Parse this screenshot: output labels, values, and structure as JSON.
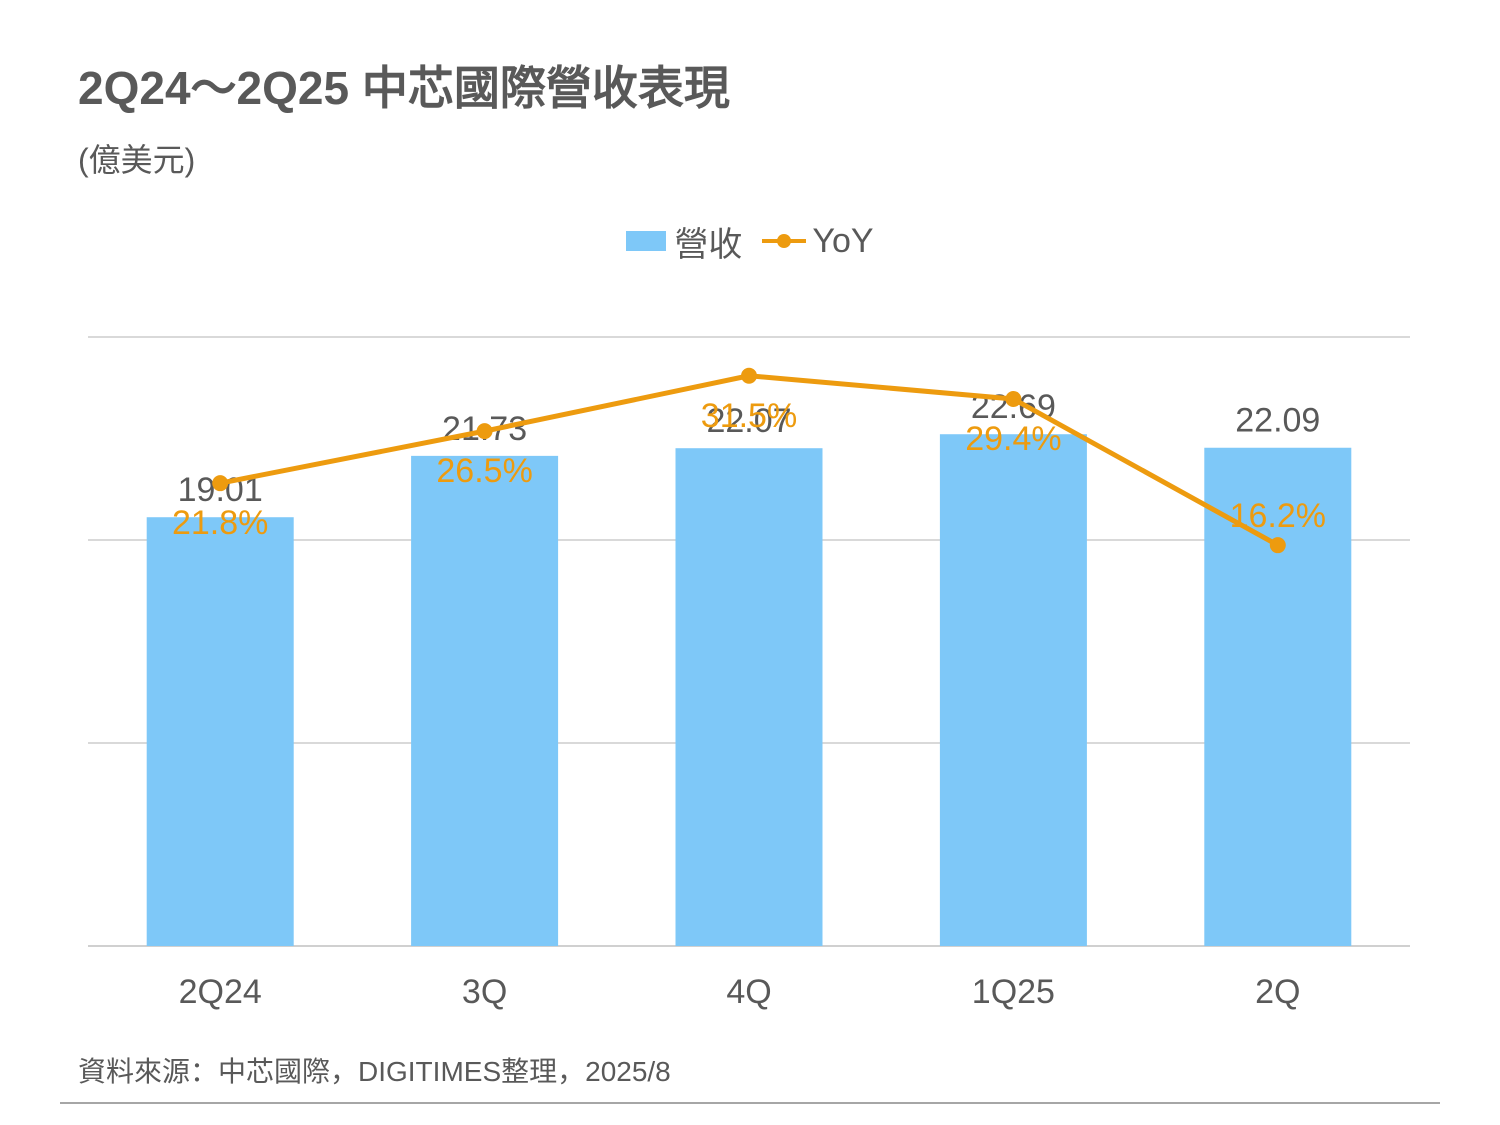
{
  "header": {
    "title": "2Q24～2Q25 中芯國際營收表現",
    "subtitle": "(億美元)"
  },
  "legend": {
    "bar_label": "營收",
    "line_label": "YoY"
  },
  "footer": {
    "source": "資料來源：中芯國際，DIGITIMES整理，2025/8"
  },
  "colors": {
    "bar": "#7ec8f8",
    "line": "#ed9b0f",
    "text": "#595959",
    "grid": "#d9d9d9"
  },
  "chart_data": {
    "type": "bar",
    "categories": [
      "2Q24",
      "3Q",
      "4Q",
      "1Q25",
      "2Q"
    ],
    "series": [
      {
        "name": "營收",
        "type": "bar",
        "axis": "left",
        "values": [
          19.01,
          21.73,
          22.07,
          22.69,
          22.09
        ],
        "labels": [
          "19.01",
          "21.73",
          "22.07",
          "22.69",
          "22.09"
        ]
      },
      {
        "name": "YoY",
        "type": "line",
        "axis": "right",
        "values": [
          21.8,
          26.5,
          31.5,
          29.4,
          16.2
        ],
        "labels": [
          "21.8%",
          "26.5%",
          "31.5%",
          "29.4%",
          "16.2%"
        ]
      }
    ],
    "ylim_left": [
      0,
      27
    ],
    "ylim_right": [
      -20,
      35
    ],
    "grid": true,
    "legend_position": "top-center"
  }
}
